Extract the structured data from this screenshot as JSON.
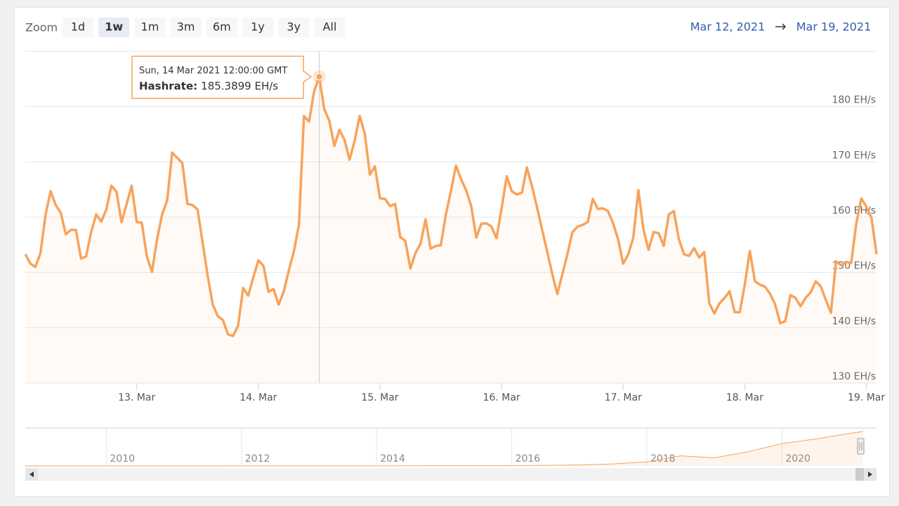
{
  "range_selector": {
    "label": "Zoom",
    "buttons": [
      "1d",
      "1w",
      "1m",
      "3m",
      "6m",
      "1y",
      "3y",
      "All"
    ],
    "selected": 1
  },
  "date_range": {
    "from": "Mar 12, 2021",
    "to": "Mar 19, 2021"
  },
  "chart_data": [
    {
      "type": "area",
      "color": "#f7a35c",
      "x": [
        2,
        3,
        4,
        5,
        6,
        7,
        8,
        9,
        10,
        11,
        12,
        13,
        14,
        15,
        16,
        17,
        18,
        19,
        20,
        21,
        22,
        23,
        24,
        25,
        26,
        27,
        28,
        29,
        30,
        31,
        32,
        33,
        34,
        35,
        36,
        37,
        38,
        39,
        40,
        41,
        42,
        43,
        44,
        45,
        46,
        47,
        48,
        49,
        50,
        51,
        52,
        53,
        54,
        55,
        56,
        57,
        58,
        59,
        60,
        61,
        62,
        63,
        64,
        65,
        66,
        67,
        68,
        69,
        70,
        71,
        72,
        73,
        74,
        75,
        76,
        77,
        78,
        79,
        80,
        81,
        82,
        83,
        84,
        85,
        86,
        87,
        88,
        89,
        90,
        91,
        92,
        93,
        94,
        95,
        96,
        97,
        98,
        99,
        100,
        101,
        102,
        103,
        104,
        105,
        106,
        107,
        108,
        109,
        110,
        111,
        112,
        113,
        114,
        115,
        116,
        117,
        118,
        119,
        120,
        121,
        122,
        123,
        124,
        125,
        126,
        127,
        128,
        129,
        130,
        131,
        132,
        133,
        134,
        135,
        136,
        137,
        138,
        139,
        140,
        141,
        142,
        143,
        144,
        145,
        146,
        147,
        148,
        149,
        150,
        151,
        152,
        153,
        154,
        155,
        156,
        157,
        158,
        159,
        160,
        161,
        162,
        163,
        164,
        165,
        166,
        167,
        168,
        169,
        170
      ],
      "values": [
        153.3,
        151.6,
        151.0,
        153.5,
        160.5,
        164.7,
        162.2,
        160.8,
        156.9,
        157.7,
        157.7,
        152.5,
        152.9,
        157.3,
        160.5,
        159.2,
        161.4,
        165.7,
        164.6,
        159.1,
        162.4,
        165.7,
        159.1,
        159.0,
        152.9,
        150.1,
        156.0,
        160.5,
        163.0,
        171.7,
        170.7,
        169.8,
        162.4,
        162.2,
        161.4,
        155.4,
        149.4,
        144.2,
        142.1,
        141.4,
        138.8,
        138.5,
        140.4,
        147.2,
        145.8,
        149.1,
        152.2,
        151.2,
        146.5,
        147.0,
        144.2,
        146.5,
        150.3,
        153.8,
        158.6,
        178.3,
        177.3,
        182.7,
        185.3899,
        179.6,
        177.4,
        172.9,
        175.8,
        174.0,
        170.4,
        173.8,
        178.3,
        175.1,
        167.7,
        169.2,
        163.4,
        163.3,
        162.0,
        162.4,
        156.4,
        155.7,
        150.7,
        153.5,
        155.2,
        159.6,
        154.3,
        154.8,
        154.9,
        160.5,
        164.7,
        169.3,
        166.9,
        164.9,
        162.0,
        156.3,
        158.8,
        158.9,
        158.3,
        156.2,
        161.5,
        167.4,
        164.7,
        164.1,
        164.4,
        169.0,
        165.6,
        161.8,
        157.7,
        153.8,
        149.7,
        146.1,
        149.7,
        153.3,
        157.3,
        158.3,
        158.6,
        159.1,
        163.3,
        161.5,
        161.6,
        161.1,
        158.9,
        156.0,
        151.6,
        153.3,
        156.3,
        164.9,
        157.8,
        154.1,
        157.3,
        157.1,
        154.8,
        160.5,
        161.1,
        156.0,
        153.3,
        153.0,
        154.4,
        152.7,
        153.7,
        144.4,
        142.6,
        144.4,
        145.4,
        146.6,
        142.8,
        142.8,
        147.8,
        153.9,
        148.4,
        147.8,
        147.4,
        146.1,
        144.2,
        140.8,
        141.2,
        145.9,
        145.4,
        143.9,
        145.4,
        146.4,
        148.4,
        147.5,
        145.0,
        142.7,
        152.0,
        151.3,
        151.9,
        151.7,
        158.8,
        163.4,
        161.9,
        159.9,
        153.3
      ],
      "xlim": [
        2,
        170
      ],
      "ylim": [
        130,
        190
      ],
      "xticks": [
        {
          "value": 24,
          "label": "13. Mar"
        },
        {
          "value": 48,
          "label": "14. Mar"
        },
        {
          "value": 72,
          "label": "15. Mar"
        },
        {
          "value": 96,
          "label": "16. Mar"
        },
        {
          "value": 120,
          "label": "17. Mar"
        },
        {
          "value": 144,
          "label": "18. Mar"
        },
        {
          "value": 168,
          "label": "19. Mar"
        }
      ],
      "yticks": [
        {
          "value": 130,
          "label": "130 EH/s"
        },
        {
          "value": 140,
          "label": "140 EH/s"
        },
        {
          "value": 150,
          "label": "150 EH/s"
        },
        {
          "value": 160,
          "label": "160 EH/s"
        },
        {
          "value": 170,
          "label": "170 EH/s"
        },
        {
          "value": 180,
          "label": "180 EH/s"
        }
      ],
      "grid": true,
      "tooltip": {
        "point": 58,
        "header": "Sun, 14 Mar 2021 12:00:00 GMT",
        "label": "Hashrate:",
        "value": "185.3899 EH/s"
      }
    },
    {
      "type": "area",
      "color": "#f7a35c",
      "x": [
        2008.8,
        2014,
        2016,
        2017,
        2017.5,
        2018,
        2018.5,
        2019,
        2019.5,
        2020,
        2020.5,
        2021,
        2021.2
      ],
      "values": [
        0,
        0.2,
        1.5,
        5,
        10,
        20,
        50,
        40,
        70,
        110,
        133,
        160,
        170
      ],
      "xlim": [
        2008.8,
        2021.4
      ],
      "ylim": [
        0,
        180
      ],
      "xticks": [
        2010,
        2012,
        2014,
        2016,
        2018,
        2020
      ]
    }
  ]
}
